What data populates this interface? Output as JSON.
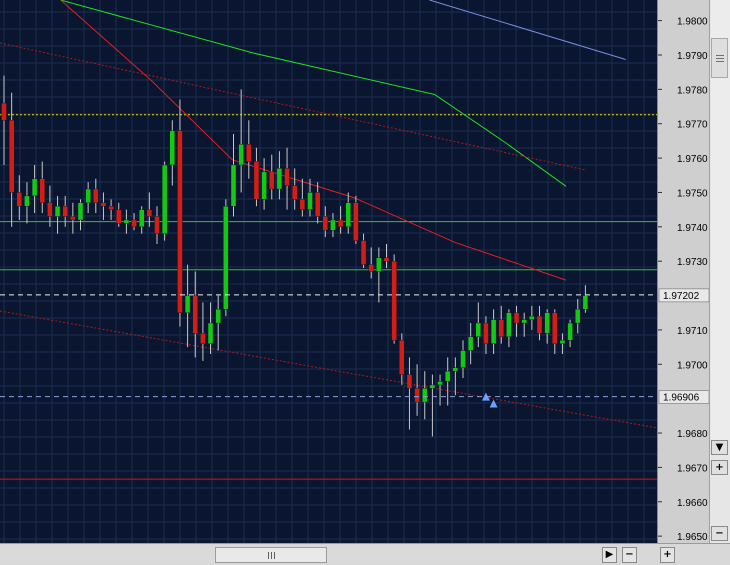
{
  "chart_data": {
    "type": "candlestick",
    "x_axis_labels_visible": false,
    "y_axis": {
      "ticks": [
        "1.9800",
        "1.9790",
        "1.9780",
        "1.9770",
        "1.9760",
        "1.9750",
        "1.9740",
        "1.9730",
        "1.9710",
        "1.9700",
        "1.9680",
        "1.9670",
        "1.9660",
        "1.9650"
      ],
      "range": [
        1.9648,
        1.9806
      ],
      "position": "right"
    },
    "colors": {
      "background": "#0a1530",
      "grid": "#1e2e52",
      "bull": "#14c814",
      "bear": "#d21e14",
      "wick": "#c8c8c8"
    },
    "price_markers": [
      {
        "label": "1.97202",
        "value": 1.97202,
        "style": "dashed",
        "color": "#f0f0f0"
      },
      {
        "label": "1.96906",
        "value": 1.96906,
        "style": "dashed",
        "color": "#8aa0e0"
      }
    ],
    "horizontal_levels": [
      {
        "value": 1.97726,
        "color": "#e8e000",
        "style": "dotted"
      },
      {
        "value": 1.97415,
        "color": "#20d020",
        "style": "solid"
      },
      {
        "value": 1.97275,
        "color": "#20d020",
        "style": "solid"
      },
      {
        "value": 1.96666,
        "color": "#e01010",
        "style": "solid"
      }
    ],
    "lines": [
      {
        "name": "",
        "color": "#7b8de0",
        "style": "solid",
        "points": [
          [
            0.6538,
            1.9806
          ],
          [
            0.9523,
            1.97887
          ]
        ]
      },
      {
        "name": "",
        "color": "#1ee01e",
        "style": "solid",
        "points": [
          [
            0.0923,
            1.9806
          ],
          [
            0.3846,
            1.97906
          ],
          [
            0.6615,
            1.97785
          ],
          [
            0.7692,
            1.97645
          ],
          [
            0.8615,
            1.97518
          ]
        ]
      },
      {
        "name": "",
        "color": "#e0201e",
        "style": "solid",
        "points": [
          [
            0.0923,
            1.9806
          ],
          [
            0.2308,
            1.97825
          ],
          [
            0.3538,
            1.97595
          ],
          [
            0.5385,
            1.97485
          ],
          [
            0.6923,
            1.97355
          ],
          [
            0.8615,
            1.97245
          ]
        ]
      },
      {
        "name": "",
        "color": "#b01818",
        "style": "dotted",
        "points": [
          [
            0.0,
            1.97935
          ],
          [
            0.8923,
            1.97565
          ]
        ]
      },
      {
        "name": "",
        "color": "#b01818",
        "style": "dotted",
        "points": [
          [
            0.0,
            1.97155
          ],
          [
            1.0,
            1.96815
          ]
        ]
      }
    ],
    "arrow_markers": [
      {
        "color": "#6aa0ff",
        "price": 1.969,
        "bar_index": 63
      },
      {
        "color": "#6aa0ff",
        "price": 1.9688,
        "bar_index": 64
      }
    ],
    "candles": [
      [
        1.9776,
        1.9784,
        1.9758,
        1.9771
      ],
      [
        1.9771,
        1.9779,
        1.974,
        1.975
      ],
      [
        1.975,
        1.9755,
        1.9742,
        1.9746
      ],
      [
        1.9746,
        1.9753,
        1.9741,
        1.9749
      ],
      [
        1.9749,
        1.9758,
        1.9744,
        1.9754
      ],
      [
        1.9754,
        1.9759,
        1.9744,
        1.9747
      ],
      [
        1.9747,
        1.9752,
        1.974,
        1.9743
      ],
      [
        1.9743,
        1.9749,
        1.9738,
        1.9746
      ],
      [
        1.9746,
        1.9749,
        1.974,
        1.9743
      ],
      [
        1.9743,
        1.9747,
        1.9738,
        1.9742
      ],
      [
        1.9742,
        1.9748,
        1.9739,
        1.9747
      ],
      [
        1.9747,
        1.9753,
        1.9744,
        1.9751
      ],
      [
        1.9751,
        1.9754,
        1.9744,
        1.9747
      ],
      [
        1.9747,
        1.975,
        1.9742,
        1.9746
      ],
      [
        1.9746,
        1.9748,
        1.9742,
        1.9745
      ],
      [
        1.9745,
        1.9747,
        1.974,
        1.9741
      ],
      [
        1.9741,
        1.9745,
        1.9738,
        1.9742
      ],
      [
        1.9742,
        1.9744,
        1.9739,
        1.974
      ],
      [
        1.974,
        1.9746,
        1.9738,
        1.9745
      ],
      [
        1.9745,
        1.975,
        1.974,
        1.9743
      ],
      [
        1.9743,
        1.9746,
        1.9735,
        1.9738
      ],
      [
        1.9738,
        1.9759,
        1.9736,
        1.9758
      ],
      [
        1.9758,
        1.9771,
        1.9752,
        1.9768
      ],
      [
        1.9768,
        1.9777,
        1.9711,
        1.9715
      ],
      [
        1.9715,
        1.9729,
        1.9705,
        1.972
      ],
      [
        1.972,
        1.9727,
        1.9702,
        1.9709
      ],
      [
        1.9709,
        1.9718,
        1.9701,
        1.9706
      ],
      [
        1.9706,
        1.9718,
        1.9703,
        1.9712
      ],
      [
        1.9712,
        1.972,
        1.9704,
        1.9716
      ],
      [
        1.9716,
        1.9748,
        1.9714,
        1.9746
      ],
      [
        1.9746,
        1.9767,
        1.9743,
        1.9758
      ],
      [
        1.9758,
        1.978,
        1.975,
        1.9764
      ],
      [
        1.9764,
        1.9771,
        1.9754,
        1.9759
      ],
      [
        1.9759,
        1.9763,
        1.9746,
        1.9748
      ],
      [
        1.9748,
        1.976,
        1.9745,
        1.9756
      ],
      [
        1.9756,
        1.9761,
        1.9748,
        1.9751
      ],
      [
        1.9751,
        1.9762,
        1.9748,
        1.9757
      ],
      [
        1.9757,
        1.9763,
        1.9745,
        1.9752
      ],
      [
        1.9752,
        1.9757,
        1.9745,
        1.9748
      ],
      [
        1.9748,
        1.9754,
        1.9743,
        1.9745
      ],
      [
        1.9745,
        1.9754,
        1.9743,
        1.975
      ],
      [
        1.975,
        1.9753,
        1.9741,
        1.9743
      ],
      [
        1.9743,
        1.9746,
        1.9737,
        1.9739
      ],
      [
        1.9739,
        1.9744,
        1.9737,
        1.9742
      ],
      [
        1.9742,
        1.9746,
        1.9738,
        1.974
      ],
      [
        1.974,
        1.975,
        1.9738,
        1.9747
      ],
      [
        1.9747,
        1.9749,
        1.9735,
        1.9736
      ],
      [
        1.9736,
        1.9738,
        1.9728,
        1.9729
      ],
      [
        1.9729,
        1.9734,
        1.9725,
        1.9727
      ],
      [
        1.9727,
        1.9734,
        1.9718,
        1.9731
      ],
      [
        1.9731,
        1.9735,
        1.9728,
        1.973
      ],
      [
        1.973,
        1.9732,
        1.9706,
        1.9707
      ],
      [
        1.9707,
        1.9709,
        1.9694,
        1.9697
      ],
      [
        1.9697,
        1.9702,
        1.9681,
        1.9693
      ],
      [
        1.9693,
        1.97,
        1.9685,
        1.9689
      ],
      [
        1.9689,
        1.9698,
        1.9684,
        1.9693
      ],
      [
        1.9693,
        1.9697,
        1.9679,
        1.9694
      ],
      [
        1.9694,
        1.9697,
        1.9688,
        1.9695
      ],
      [
        1.9695,
        1.9702,
        1.9688,
        1.9698
      ],
      [
        1.9698,
        1.9702,
        1.9691,
        1.9699
      ],
      [
        1.9699,
        1.9707,
        1.9696,
        1.9704
      ],
      [
        1.9704,
        1.9712,
        1.97,
        1.9708
      ],
      [
        1.9708,
        1.9718,
        1.9705,
        1.9712
      ],
      [
        1.9712,
        1.9714,
        1.9703,
        1.9706
      ],
      [
        1.9706,
        1.9716,
        1.9703,
        1.9713
      ],
      [
        1.9713,
        1.9717,
        1.9706,
        1.9708
      ],
      [
        1.9708,
        1.9716,
        1.9705,
        1.9715
      ],
      [
        1.9715,
        1.9717,
        1.9708,
        1.9712
      ],
      [
        1.9712,
        1.9715,
        1.9708,
        1.9713
      ],
      [
        1.9713,
        1.9717,
        1.971,
        1.9714
      ],
      [
        1.9714,
        1.9717,
        1.9707,
        1.9709
      ],
      [
        1.9709,
        1.9716,
        1.9706,
        1.9715
      ],
      [
        1.9715,
        1.9716,
        1.9703,
        1.9706
      ],
      [
        1.9706,
        1.9709,
        1.9703,
        1.9707
      ],
      [
        1.9707,
        1.9713,
        1.9705,
        1.9712
      ],
      [
        1.9712,
        1.9719,
        1.9709,
        1.9716
      ],
      [
        1.9716,
        1.9723,
        1.9715,
        1.972
      ]
    ]
  }
}
